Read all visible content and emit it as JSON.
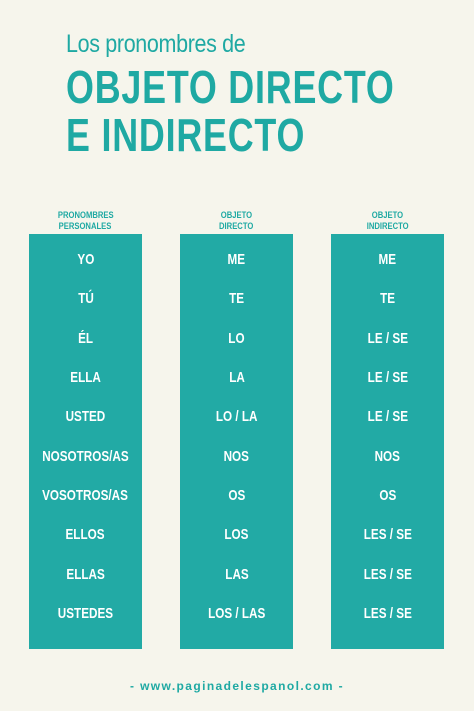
{
  "header": {
    "subtitle": "Los pronombres de",
    "title_line1": "OBJETO DIRECTO",
    "title_line2": "E INDIRECTO"
  },
  "columns": [
    {
      "head_line1": "PRONOMBRES",
      "head_line2": "PERSONALES",
      "rows": [
        "YO",
        "TÚ",
        "ÉL",
        "ELLA",
        "USTED",
        "NOSOTROS/AS",
        "VOSOTROS/AS",
        "ELLOS",
        "ELLAS",
        "USTEDES"
      ]
    },
    {
      "head_line1": "OBJETO",
      "head_line2": "DIRECTO",
      "rows": [
        "ME",
        "TE",
        "LO",
        "LA",
        "LO / LA",
        "NOS",
        "OS",
        "LOS",
        "LAS",
        "LOS / LAS"
      ]
    },
    {
      "head_line1": "OBJETO",
      "head_line2": "INDIRECTO",
      "rows": [
        "ME",
        "TE",
        "LE / SE",
        "LE / SE",
        "LE / SE",
        "NOS",
        "OS",
        "LES / SE",
        "LES / SE",
        "LES / SE"
      ]
    }
  ],
  "footer": {
    "text": "- www.paginadelespanol.com -"
  },
  "colors": {
    "background": "#f6f5ec",
    "accent": "#22aaa5",
    "text_on_accent": "#ffffff"
  }
}
